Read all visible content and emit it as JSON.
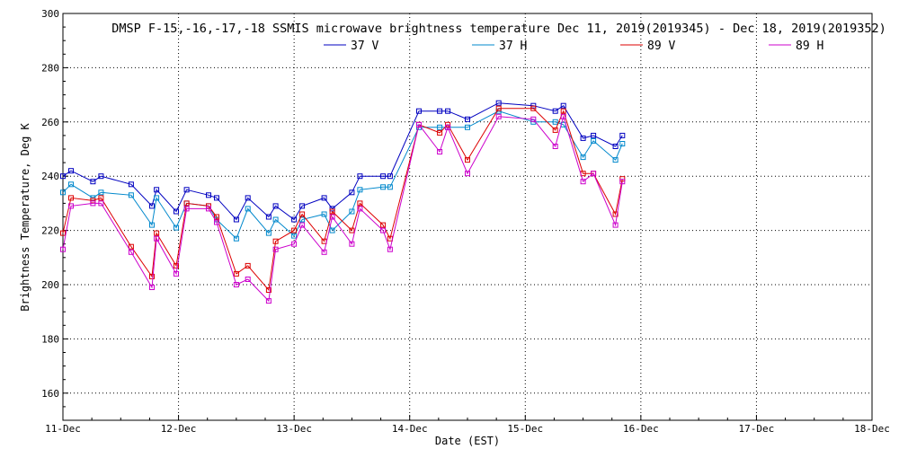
{
  "chart_data": {
    "type": "line",
    "title": "DMSP F-15,-16,-17,-18 SSMIS microwave brightness temperature Dec 11, 2019(2019345) - Dec 18, 2019(2019352)",
    "xlabel": "Date (EST)",
    "ylabel": "Brightness Temperature, Deg K",
    "xlim": [
      0,
      7
    ],
    "ylim": [
      150,
      300
    ],
    "x_unit": "days since 11-Dec",
    "xticks": [
      {
        "value": 0,
        "label": "11-Dec"
      },
      {
        "value": 1,
        "label": "12-Dec"
      },
      {
        "value": 2,
        "label": "13-Dec"
      },
      {
        "value": 3,
        "label": "14-Dec"
      },
      {
        "value": 4,
        "label": "15-Dec"
      },
      {
        "value": 5,
        "label": "16-Dec"
      },
      {
        "value": 6,
        "label": "17-Dec"
      },
      {
        "value": 7,
        "label": "18-Dec"
      }
    ],
    "yticks": [
      160,
      180,
      200,
      220,
      240,
      260,
      280,
      300
    ],
    "grid": true,
    "legend_position": "top-center",
    "series": [
      {
        "name": "37 V",
        "color": "#0000c0",
        "points": [
          [
            0.0,
            240
          ],
          [
            0.07,
            242
          ],
          [
            0.26,
            238
          ],
          [
            0.33,
            240
          ],
          [
            0.59,
            237
          ],
          [
            0.77,
            229
          ],
          [
            0.81,
            235
          ],
          [
            0.98,
            227
          ],
          [
            1.07,
            235
          ],
          [
            1.26,
            233
          ],
          [
            1.33,
            232
          ],
          [
            1.5,
            224
          ],
          [
            1.6,
            232
          ],
          [
            1.78,
            225
          ],
          [
            1.84,
            229
          ],
          [
            2.0,
            224
          ],
          [
            2.07,
            229
          ],
          [
            2.26,
            232
          ],
          [
            2.33,
            228
          ],
          [
            2.5,
            234
          ],
          [
            2.57,
            240
          ],
          [
            2.77,
            240
          ],
          [
            2.83,
            240
          ],
          [
            3.08,
            264
          ],
          [
            3.26,
            264
          ],
          [
            3.33,
            264
          ],
          [
            3.5,
            261
          ],
          [
            3.77,
            267
          ],
          [
            4.07,
            266
          ],
          [
            4.26,
            264
          ],
          [
            4.33,
            266
          ],
          [
            4.5,
            254
          ],
          [
            4.59,
            255
          ],
          [
            4.78,
            251
          ],
          [
            4.84,
            255
          ]
        ]
      },
      {
        "name": "37 H",
        "color": "#0088cc",
        "points": [
          [
            0.0,
            234
          ],
          [
            0.07,
            237
          ],
          [
            0.26,
            232
          ],
          [
            0.33,
            234
          ],
          [
            0.59,
            233
          ],
          [
            0.77,
            222
          ],
          [
            0.81,
            232
          ],
          [
            0.98,
            221
          ],
          [
            1.07,
            230
          ],
          [
            1.26,
            229
          ],
          [
            1.33,
            224
          ],
          [
            1.5,
            217
          ],
          [
            1.6,
            228
          ],
          [
            1.78,
            219
          ],
          [
            1.84,
            224
          ],
          [
            2.0,
            218
          ],
          [
            2.07,
            224
          ],
          [
            2.26,
            226
          ],
          [
            2.33,
            220
          ],
          [
            2.5,
            227
          ],
          [
            2.57,
            235
          ],
          [
            2.77,
            236
          ],
          [
            2.83,
            236
          ],
          [
            3.08,
            258
          ],
          [
            3.26,
            258
          ],
          [
            3.33,
            258
          ],
          [
            3.5,
            258
          ],
          [
            3.77,
            264
          ],
          [
            4.07,
            260
          ],
          [
            4.26,
            260
          ],
          [
            4.33,
            259
          ],
          [
            4.5,
            247
          ],
          [
            4.59,
            253
          ],
          [
            4.78,
            246
          ],
          [
            4.84,
            252
          ]
        ]
      },
      {
        "name": "89 V",
        "color": "#dd0000",
        "points": [
          [
            0.0,
            219
          ],
          [
            0.07,
            232
          ],
          [
            0.26,
            231
          ],
          [
            0.33,
            232
          ],
          [
            0.59,
            214
          ],
          [
            0.77,
            203
          ],
          [
            0.81,
            219
          ],
          [
            0.98,
            207
          ],
          [
            1.07,
            230
          ],
          [
            1.26,
            229
          ],
          [
            1.33,
            225
          ],
          [
            1.5,
            204
          ],
          [
            1.6,
            207
          ],
          [
            1.78,
            198
          ],
          [
            1.84,
            216
          ],
          [
            2.0,
            220
          ],
          [
            2.07,
            226
          ],
          [
            2.26,
            216
          ],
          [
            2.33,
            227
          ],
          [
            2.5,
            220
          ],
          [
            2.57,
            230
          ],
          [
            2.77,
            222
          ],
          [
            2.83,
            217
          ],
          [
            3.08,
            259
          ],
          [
            3.26,
            256
          ],
          [
            3.33,
            259
          ],
          [
            3.5,
            246
          ],
          [
            3.77,
            265
          ],
          [
            4.07,
            265
          ],
          [
            4.26,
            257
          ],
          [
            4.33,
            264
          ],
          [
            4.5,
            241
          ],
          [
            4.59,
            241
          ],
          [
            4.78,
            226
          ],
          [
            4.84,
            239
          ]
        ]
      },
      {
        "name": "89 H",
        "color": "#cc00cc",
        "points": [
          [
            0.0,
            213
          ],
          [
            0.07,
            229
          ],
          [
            0.26,
            230
          ],
          [
            0.33,
            230
          ],
          [
            0.59,
            212
          ],
          [
            0.77,
            199
          ],
          [
            0.81,
            217
          ],
          [
            0.98,
            204
          ],
          [
            1.07,
            228
          ],
          [
            1.26,
            228
          ],
          [
            1.33,
            223
          ],
          [
            1.5,
            200
          ],
          [
            1.6,
            202
          ],
          [
            1.78,
            194
          ],
          [
            1.84,
            213
          ],
          [
            2.0,
            215
          ],
          [
            2.07,
            222
          ],
          [
            2.26,
            212
          ],
          [
            2.33,
            225
          ],
          [
            2.5,
            215
          ],
          [
            2.57,
            228
          ],
          [
            2.77,
            220
          ],
          [
            2.83,
            213
          ],
          [
            3.08,
            259
          ],
          [
            3.26,
            249
          ],
          [
            3.33,
            258
          ],
          [
            3.5,
            241
          ],
          [
            3.77,
            262
          ],
          [
            4.07,
            261
          ],
          [
            4.26,
            251
          ],
          [
            4.33,
            262
          ],
          [
            4.5,
            238
          ],
          [
            4.59,
            241
          ],
          [
            4.78,
            222
          ],
          [
            4.84,
            238
          ]
        ]
      }
    ]
  }
}
